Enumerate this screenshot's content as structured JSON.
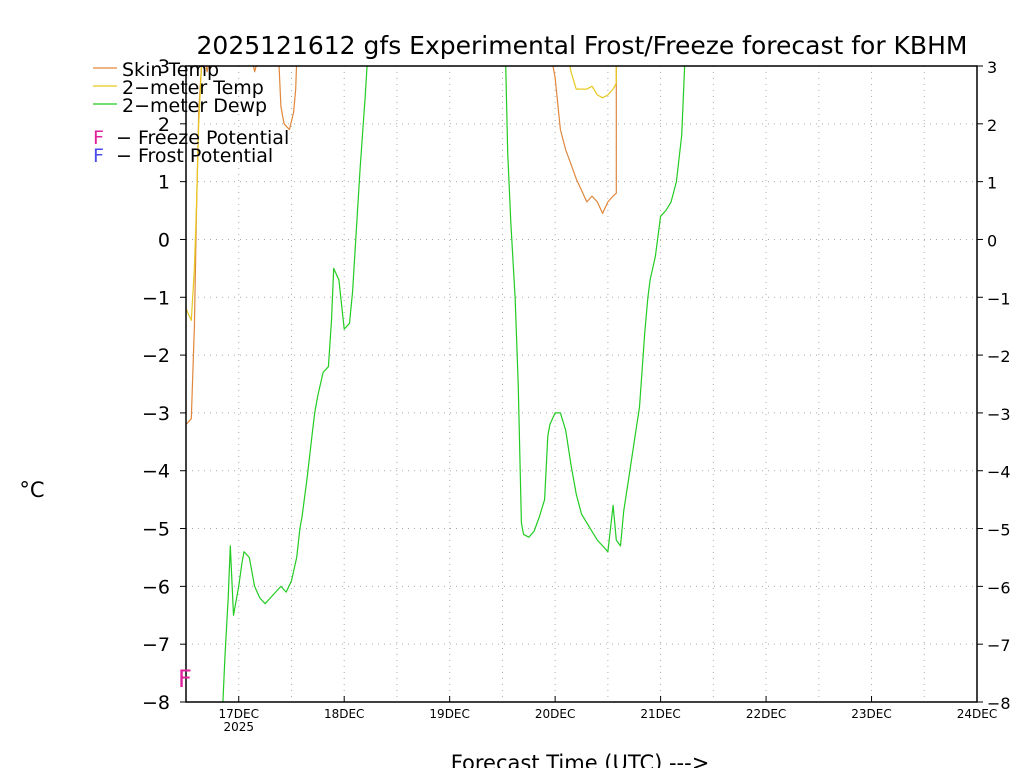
{
  "chart_data": {
    "type": "line",
    "title": "2025121612 gfs Experimental Frost/Freeze forecast for KBHM",
    "xlabel": "Forecast Time (UTC) --->",
    "ylabel": "°C",
    "ylim": [
      -8,
      3
    ],
    "xlim": [
      16.5,
      24.0
    ],
    "grid": true,
    "y_ticks": [
      -8,
      -7,
      -6,
      -5,
      -4,
      -3,
      -2,
      -1,
      0,
      1,
      2,
      3
    ],
    "y_tick_labels": [
      "−8",
      "−7",
      "−6",
      "−5",
      "−4",
      "−3",
      "−2",
      "−1",
      "0",
      "1",
      "2",
      "3"
    ],
    "x_ticks": [
      {
        "x": 17,
        "label": "17DEC",
        "sublabel": "2025"
      },
      {
        "x": 18,
        "label": "18DEC"
      },
      {
        "x": 19,
        "label": "19DEC"
      },
      {
        "x": 20,
        "label": "20DEC"
      },
      {
        "x": 21,
        "label": "21DEC"
      },
      {
        "x": 22,
        "label": "22DEC"
      },
      {
        "x": 23,
        "label": "23DEC"
      },
      {
        "x": 24,
        "label": "24DEC"
      }
    ],
    "legend": {
      "placement": "top-left",
      "series_entries": [
        "Skin Temp",
        "2−meter Temp",
        "2−meter Dewp"
      ],
      "markers": [
        {
          "glyph": "F",
          "text": "− Freeze Potential",
          "color": "#e0209a"
        },
        {
          "glyph": "F",
          "text": "− Frost Potential",
          "color": "#4a4ae8"
        }
      ]
    },
    "annotations": [
      {
        "text": "F",
        "x": 16.5,
        "y": -7.6,
        "color": "#e0209a"
      }
    ],
    "series": [
      {
        "name": "Skin Temp",
        "color": "#e0873c",
        "segments": [
          {
            "x": [
              16.5,
              16.55,
              16.58,
              16.6,
              16.62,
              16.65,
              16.68,
              16.7
            ],
            "y": [
              -3.2,
              -3.1,
              -1.5,
              0.5,
              2.2,
              3.1,
              3.1,
              3.1
            ]
          },
          {
            "x": [
              16.68,
              16.7,
              16.72
            ],
            "y": [
              3.1,
              2.9,
              3.1
            ]
          },
          {
            "x": [
              17.13,
              17.15,
              17.18
            ],
            "y": [
              3.1,
              2.9,
              3.1
            ]
          },
          {
            "x": [
              17.38,
              17.4,
              17.43,
              17.48,
              17.52,
              17.54,
              17.55
            ],
            "y": [
              3.1,
              2.3,
              2.0,
              1.9,
              2.2,
              2.6,
              3.1
            ]
          },
          {
            "x": [
              19.97,
              20.0,
              20.05,
              20.1,
              20.15,
              20.2,
              20.25,
              20.3,
              20.35,
              20.4,
              20.45,
              20.5,
              20.55,
              20.58,
              20.58
            ],
            "y": [
              3.1,
              2.8,
              1.9,
              1.55,
              1.3,
              1.05,
              0.85,
              0.65,
              0.75,
              0.65,
              0.45,
              0.65,
              0.75,
              0.8,
              3.1
            ]
          }
        ]
      },
      {
        "name": "2−meter Temp",
        "color": "#e8c820",
        "segments": [
          {
            "x": [
              16.5,
              16.55,
              16.58,
              16.6,
              16.62,
              16.65,
              16.68,
              16.7
            ],
            "y": [
              -1.2,
              -1.4,
              -0.5,
              0.6,
              2.0,
              3.1,
              3.1,
              3.1
            ]
          },
          {
            "x": [
              20.13,
              20.15,
              20.2,
              20.25,
              20.3,
              20.35,
              20.4,
              20.45,
              20.5,
              20.55,
              20.58,
              20.58
            ],
            "y": [
              3.1,
              2.9,
              2.6,
              2.6,
              2.6,
              2.65,
              2.5,
              2.45,
              2.5,
              2.6,
              2.7,
              3.1
            ]
          }
        ]
      },
      {
        "name": "2−meter Dewp",
        "color": "#22cc22",
        "segments": [
          {
            "x": [
              16.85,
              16.87,
              16.9,
              16.92,
              16.95,
              16.97,
              17.0,
              17.03,
              17.05,
              17.1,
              17.15,
              17.2,
              17.25,
              17.3,
              17.35,
              17.4,
              17.45,
              17.5,
              17.55,
              17.58,
              17.6,
              17.65,
              17.7,
              17.72,
              17.75,
              17.8,
              17.85,
              17.88,
              17.9,
              17.95,
              18.0,
              18.05,
              18.08,
              18.1,
              18.15,
              18.2,
              18.22
            ],
            "y": [
              -8.0,
              -7.2,
              -6.2,
              -5.3,
              -6.5,
              -6.3,
              -6.0,
              -5.6,
              -5.4,
              -5.5,
              -6.0,
              -6.2,
              -6.3,
              -6.2,
              -6.1,
              -6.0,
              -6.1,
              -5.9,
              -5.5,
              -5.0,
              -4.8,
              -4.1,
              -3.3,
              -3.0,
              -2.7,
              -2.3,
              -2.2,
              -1.4,
              -0.5,
              -0.7,
              -1.55,
              -1.45,
              -0.9,
              -0.3,
              1.2,
              2.5,
              3.1
            ]
          },
          {
            "x": [
              19.53,
              19.55,
              19.58,
              19.62,
              19.65,
              19.68,
              19.7,
              19.75,
              19.8,
              19.85,
              19.9,
              19.93,
              19.95,
              20.0,
              20.05,
              20.1,
              20.15,
              20.2,
              20.25,
              20.3,
              20.35,
              20.4,
              20.45,
              20.5,
              20.55,
              20.58,
              20.62,
              20.65,
              20.7,
              20.75,
              20.8,
              20.85,
              20.88,
              20.9,
              20.95,
              21.0,
              21.05,
              21.1,
              21.15,
              21.2,
              21.23
            ],
            "y": [
              3.1,
              1.5,
              0.3,
              -1.0,
              -2.5,
              -4.9,
              -5.1,
              -5.15,
              -5.05,
              -4.8,
              -4.5,
              -3.4,
              -3.2,
              -3.0,
              -3.0,
              -3.3,
              -3.9,
              -4.4,
              -4.75,
              -4.9,
              -5.05,
              -5.2,
              -5.3,
              -5.4,
              -4.6,
              -5.2,
              -5.3,
              -4.7,
              -4.1,
              -3.5,
              -2.9,
              -1.6,
              -1.0,
              -0.7,
              -0.3,
              0.4,
              0.5,
              0.65,
              1.0,
              1.8,
              3.1
            ]
          }
        ]
      }
    ]
  }
}
